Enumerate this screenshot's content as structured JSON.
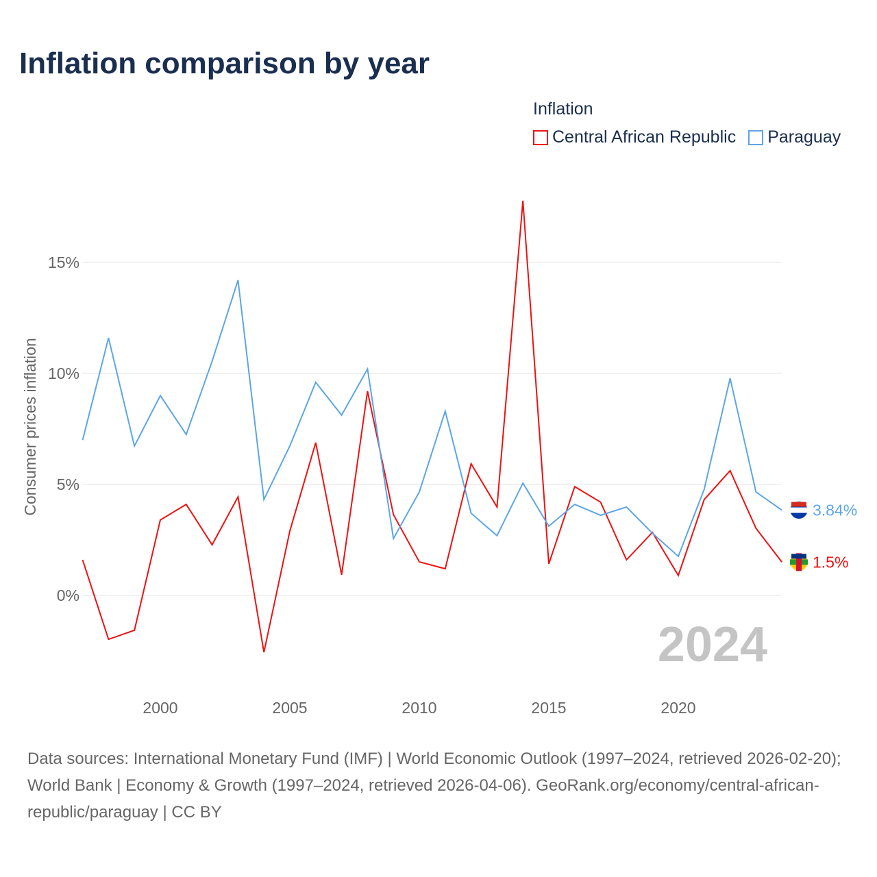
{
  "title": "Inflation comparison by year",
  "legend_title": "Inflation",
  "source_text": "Data sources: International Monetary Fund (IMF) | World Economic Outlook (1997–2024, retrieved 2026-02-20); World Bank | Economy & Growth (1997–2024, retrieved 2026-04-06). GeoRank.org/economy/central-african-republic/paraguay | CC BY",
  "chart_data": {
    "type": "line",
    "title": "Inflation comparison by year",
    "xlabel": "",
    "ylabel": "Consumer prices inflation",
    "x": [
      1997,
      1998,
      1999,
      2000,
      2001,
      2002,
      2003,
      2004,
      2005,
      2006,
      2007,
      2008,
      2009,
      2010,
      2011,
      2012,
      2013,
      2014,
      2015,
      2016,
      2017,
      2018,
      2019,
      2020,
      2021,
      2022,
      2023,
      2024
    ],
    "xlim": [
      1997,
      2024
    ],
    "ylim": [
      -4,
      18
    ],
    "x_ticks": [
      2000,
      2005,
      2010,
      2015,
      2020
    ],
    "y_ticks": [
      0,
      5,
      10,
      15
    ],
    "y_tick_labels": [
      "0%",
      "5%",
      "10%",
      "15%"
    ],
    "grid": true,
    "legend_placement": "top-right",
    "year_watermark": "2024",
    "series": [
      {
        "name": "Central African Republic",
        "color": "#ee1111",
        "end_label": "1.5%",
        "values": [
          1.6,
          -1.98,
          -1.57,
          3.4,
          4.1,
          2.28,
          4.44,
          -2.56,
          2.9,
          6.88,
          0.93,
          9.2,
          3.64,
          1.51,
          1.2,
          5.93,
          3.98,
          17.78,
          1.42,
          4.9,
          4.2,
          1.6,
          2.84,
          0.9,
          4.32,
          5.62,
          3.02,
          1.5
        ]
      },
      {
        "name": "Paraguay",
        "color": "#5ca5e8",
        "end_label": "3.84%",
        "values": [
          7.0,
          11.6,
          6.73,
          9.0,
          7.25,
          10.55,
          14.2,
          4.32,
          6.73,
          9.6,
          8.12,
          10.2,
          2.56,
          4.66,
          8.3,
          3.7,
          2.69,
          5.06,
          3.12,
          4.1,
          3.61,
          3.98,
          2.8,
          1.76,
          4.78,
          9.78,
          4.66,
          3.84
        ]
      }
    ]
  }
}
